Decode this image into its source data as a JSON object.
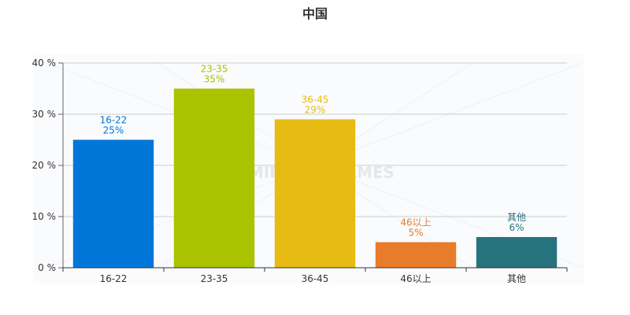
{
  "chart_data": {
    "type": "bar",
    "title": "中国",
    "xlabel": "",
    "ylabel": "",
    "categories": [
      "16-22",
      "23-35",
      "36-45",
      "46以上",
      "其他"
    ],
    "values": [
      25,
      35,
      29,
      5,
      6
    ],
    "data_labels": [
      [
        "16-22",
        "25%"
      ],
      [
        "23-35",
        "35%"
      ],
      [
        "36-45",
        "29%"
      ],
      [
        "46以上",
        "5%"
      ],
      [
        "其他",
        "6%"
      ]
    ],
    "colors": [
      "#0077d8",
      "#aac200",
      "#e6bb14",
      "#e97c2a",
      "#27737d"
    ],
    "ylim": [
      0,
      40
    ],
    "yticks": [
      0,
      10,
      20,
      30,
      40
    ],
    "ytick_labels": [
      "0 %",
      "10 %",
      "20 %",
      "30 %",
      "40 %"
    ],
    "grid": true,
    "legend": "none",
    "watermark": "MIRACLE GAMES"
  }
}
